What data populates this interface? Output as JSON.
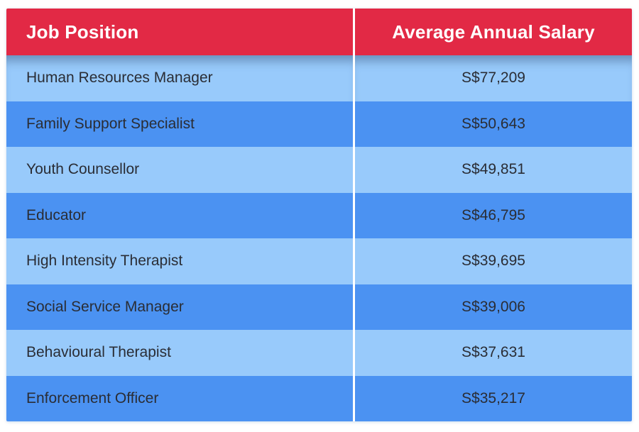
{
  "table": {
    "header": {
      "job_position": "Job Position",
      "salary": "Average Annual Salary"
    },
    "rows": [
      {
        "position": "Human Resources Manager",
        "salary": "S$77,209"
      },
      {
        "position": "Family Support Specialist",
        "salary": "S$50,643"
      },
      {
        "position": "Youth Counsellor",
        "salary": "S$49,851"
      },
      {
        "position": "Educator",
        "salary": "S$46,795"
      },
      {
        "position": "High Intensity Therapist",
        "salary": "S$39,695"
      },
      {
        "position": "Social Service Manager",
        "salary": "S$39,006"
      },
      {
        "position": "Behavioural Therapist",
        "salary": "S$37,631"
      },
      {
        "position": "Enforcement Officer",
        "salary": "S$35,217"
      }
    ],
    "colors": {
      "header_bg": "#e22945",
      "header_text": "#ffffff",
      "row_light": "#98cafb",
      "row_medium": "#4b92f2",
      "divider": "#ffffff",
      "row_text": "#2a2d35"
    }
  },
  "chart_data": {
    "type": "table",
    "columns": [
      "Job Position",
      "Average Annual Salary"
    ],
    "rows": [
      [
        "Human Resources Manager",
        "S$77,209"
      ],
      [
        "Family Support Specialist",
        "S$50,643"
      ],
      [
        "Youth Counsellor",
        "S$49,851"
      ],
      [
        "Educator",
        "S$46,795"
      ],
      [
        "High Intensity Therapist",
        "S$39,695"
      ],
      [
        "Social Service Manager",
        "S$39,006"
      ],
      [
        "Behavioural Therapist",
        "S$37,631"
      ],
      [
        "Enforcement Officer",
        "S$35,217"
      ]
    ],
    "values_numeric": [
      77209,
      50643,
      49851,
      46795,
      39695,
      39006,
      37631,
      35217
    ],
    "layout": {
      "header_style": "red band, white bold text",
      "row_striping": [
        "light-blue",
        "medium-blue"
      ],
      "column_divider": "white vertical line",
      "salary_alignment": "center",
      "position_alignment": "left"
    }
  }
}
